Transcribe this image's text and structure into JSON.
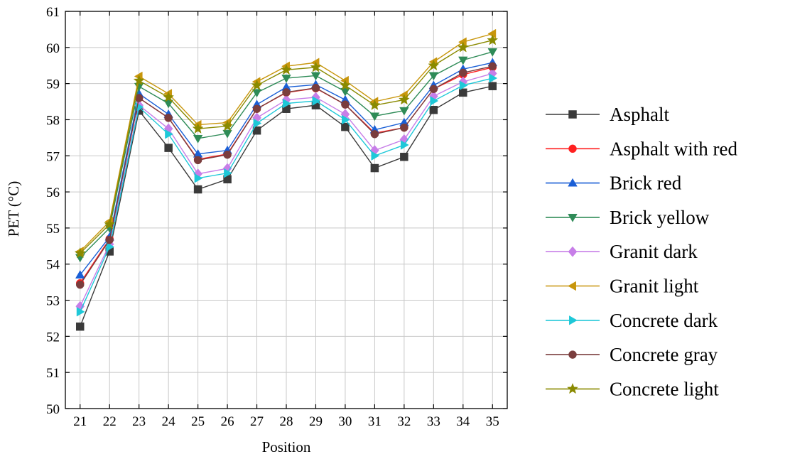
{
  "chart_data": {
    "type": "line",
    "title": "",
    "xlabel": "Position",
    "ylabel": "PET (°C)",
    "x": [
      21,
      22,
      23,
      24,
      25,
      26,
      27,
      28,
      29,
      30,
      31,
      32,
      33,
      34,
      35
    ],
    "xlim": [
      20.5,
      35.5
    ],
    "ylim": [
      50,
      61
    ],
    "yticks": [
      50,
      51,
      52,
      53,
      54,
      55,
      56,
      57,
      58,
      59,
      60,
      61
    ],
    "grid": true,
    "legend_position": "right",
    "series": [
      {
        "name": "Asphalt",
        "color": "#3a3a3a",
        "marker": "square",
        "values": [
          52.27,
          54.35,
          58.25,
          57.22,
          56.07,
          56.35,
          57.7,
          58.3,
          58.4,
          57.8,
          56.66,
          56.97,
          58.27,
          58.75,
          58.93
        ]
      },
      {
        "name": "Asphalt with red",
        "color": "#ff2020",
        "marker": "circle",
        "values": [
          53.47,
          54.7,
          58.6,
          58.05,
          56.9,
          57.05,
          58.3,
          58.75,
          58.87,
          58.42,
          57.63,
          57.78,
          58.85,
          59.25,
          59.45
        ]
      },
      {
        "name": "Brick red",
        "color": "#1a5fd6",
        "marker": "triangle-up",
        "values": [
          53.7,
          54.75,
          58.72,
          58.15,
          57.05,
          57.15,
          58.42,
          58.9,
          58.97,
          58.55,
          57.72,
          57.92,
          58.95,
          59.4,
          59.58
        ]
      },
      {
        "name": "Brick yellow",
        "color": "#2e8b57",
        "marker": "triangle-down",
        "values": [
          54.18,
          55.0,
          58.92,
          58.45,
          57.48,
          57.62,
          58.75,
          59.15,
          59.22,
          58.78,
          58.1,
          58.25,
          59.22,
          59.65,
          59.88
        ]
      },
      {
        "name": "Granit dark",
        "color": "#c77ee8",
        "marker": "diamond",
        "values": [
          52.83,
          54.55,
          58.4,
          57.75,
          56.5,
          56.65,
          58.05,
          58.55,
          58.62,
          58.15,
          57.15,
          57.45,
          58.65,
          59.05,
          59.28
        ]
      },
      {
        "name": "Granit light",
        "color": "#c8960c",
        "marker": "triangle-left",
        "values": [
          54.35,
          55.18,
          59.2,
          58.72,
          57.86,
          57.92,
          59.05,
          59.48,
          59.58,
          59.08,
          58.5,
          58.68,
          59.6,
          60.15,
          60.38
        ]
      },
      {
        "name": "Concrete dark",
        "color": "#1ec8d8",
        "marker": "triangle-right",
        "values": [
          52.68,
          54.48,
          58.35,
          57.6,
          56.38,
          56.52,
          57.9,
          58.45,
          58.52,
          58.0,
          57.0,
          57.3,
          58.52,
          58.95,
          59.15
        ]
      },
      {
        "name": "Concrete gray",
        "color": "#7a3d3d",
        "marker": "circle",
        "values": [
          53.43,
          54.67,
          58.6,
          58.05,
          56.88,
          57.03,
          58.3,
          58.76,
          58.88,
          58.42,
          57.6,
          57.78,
          58.85,
          59.3,
          59.48
        ]
      },
      {
        "name": "Concrete light",
        "color": "#8a8a00",
        "marker": "star",
        "values": [
          54.3,
          55.1,
          59.08,
          58.62,
          57.75,
          57.82,
          58.95,
          59.38,
          59.45,
          58.95,
          58.4,
          58.55,
          59.5,
          60.0,
          60.2
        ]
      }
    ]
  }
}
